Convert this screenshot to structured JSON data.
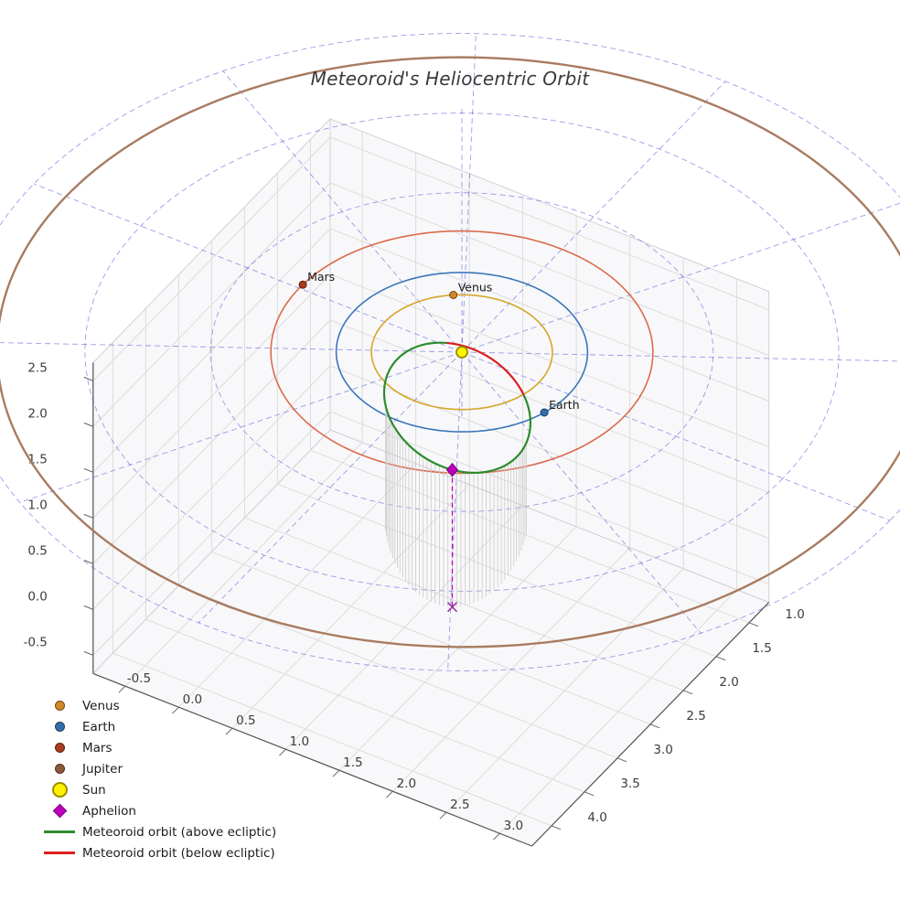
{
  "title": "Meteoroid's Heliocentric Orbit",
  "axes": {
    "x_tick_labels": [
      "-0.5",
      "0.0",
      "0.5",
      "1.0",
      "1.5",
      "2.0",
      "2.5",
      "3.0"
    ],
    "y_tick_labels": [
      "1.0",
      "1.5",
      "2.0",
      "2.5",
      "3.0",
      "3.5",
      "4.0"
    ],
    "z_tick_labels": [
      "-0.5",
      "0.0",
      "0.5",
      "1.0",
      "1.5",
      "2.0",
      "2.5"
    ]
  },
  "legend": {
    "items": [
      {
        "label": "Venus",
        "marker": "dot",
        "color": "#D2882A"
      },
      {
        "label": "Earth",
        "marker": "dot",
        "color": "#2F6FAE"
      },
      {
        "label": "Mars",
        "marker": "dot",
        "color": "#A63E1F"
      },
      {
        "label": "Jupiter",
        "marker": "dot",
        "color": "#8B5A3C"
      },
      {
        "label": "Sun",
        "marker": "dot-large",
        "color": "#FFF200"
      },
      {
        "label": "Aphelion",
        "marker": "diamond",
        "color": "#BE00BE"
      },
      {
        "label": "Meteoroid orbit (above ecliptic)",
        "marker": "line",
        "color": "#2D8B2D"
      },
      {
        "label": "Meteoroid orbit (below ecliptic)",
        "marker": "line",
        "color": "#DB1F1F"
      }
    ]
  },
  "chart_data": {
    "type": "line",
    "subtype": "3d-heliocentric-orbit-plot",
    "title": "Meteoroid's Heliocentric Orbit",
    "grid_on": true,
    "axis_ranges": {
      "x": [
        -0.8,
        3.3
      ],
      "y": [
        0.7,
        4.3
      ],
      "z": [
        -0.7,
        2.7
      ]
    },
    "x_ticks": [
      -0.5,
      0.0,
      0.5,
      1.0,
      1.5,
      2.0,
      2.5,
      3.0
    ],
    "y_ticks": [
      1.0,
      1.5,
      2.0,
      2.5,
      3.0,
      3.5,
      4.0
    ],
    "z_ticks": [
      -0.5,
      0.0,
      0.5,
      1.0,
      1.5,
      2.0,
      2.5
    ],
    "ecliptic_polar_grid": {
      "circle_radii_au": [
        1,
        2,
        3,
        4
      ],
      "n_spokes": 12,
      "color": "#3B3BD6",
      "style": "dashed"
    },
    "sun": {
      "label": "Sun",
      "position_au": [
        0,
        0,
        0
      ],
      "color": "#FFF200",
      "edge_color": "#9A8D00"
    },
    "planets": [
      {
        "name": "Venus",
        "orbit_radius_au": 0.72,
        "render_radius_au": 0.72,
        "orbit_color": "#D6A62A",
        "marker_color": "#D2882A",
        "marker_edge": "#6B4510",
        "position_angle_deg": 233,
        "show_label": true
      },
      {
        "name": "Earth",
        "orbit_radius_au": 1.0,
        "render_radius_au": 1.0,
        "orbit_color": "#3A76B8",
        "marker_color": "#2F6FAE",
        "marker_edge": "#173A5E",
        "position_angle_deg": 17.4,
        "show_label": true
      },
      {
        "name": "Mars",
        "orbit_radius_au": 1.52,
        "render_radius_au": 1.52,
        "orbit_color": "#DB6A4A",
        "marker_color": "#A63E1F",
        "marker_edge": "#5E2008",
        "position_angle_deg": 182,
        "show_label": true
      },
      {
        "name": "Jupiter",
        "orbit_radius_au": 5.2,
        "render_radius_au": 3.7,
        "orbit_color": "#A87B60",
        "marker_color": "#8B5A3C",
        "marker_edge": "#4E2E14",
        "position_angle_deg": null,
        "show_label": false
      }
    ],
    "meteoroid_orbit": {
      "above_color": "#2D8B2D",
      "below_color": "#DB1F1F",
      "ellipse_center_au": [
        0.56,
        0.98,
        0.375
      ],
      "semi_major_vec_au": [
        0.63,
        1.1,
        0.425
      ],
      "semi_minor_vec_au": [
        -0.504,
        0.289,
        0.194
      ],
      "below_ecliptic_t_deg": [
        167.9,
        241.1
      ],
      "stem_t_range_deg": [
        -75,
        75
      ],
      "stem_count": 45,
      "stem_color": "#CBCBCB"
    },
    "aphelion": {
      "label": "Aphelion",
      "position_au": [
        1.19,
        2.08,
        0.8
      ],
      "color": "#BE00BE",
      "edge_color": "#7A007A",
      "drop_line_style": "dashed",
      "ground_marker": "x",
      "ground_marker_color": "#9A30A0"
    }
  }
}
